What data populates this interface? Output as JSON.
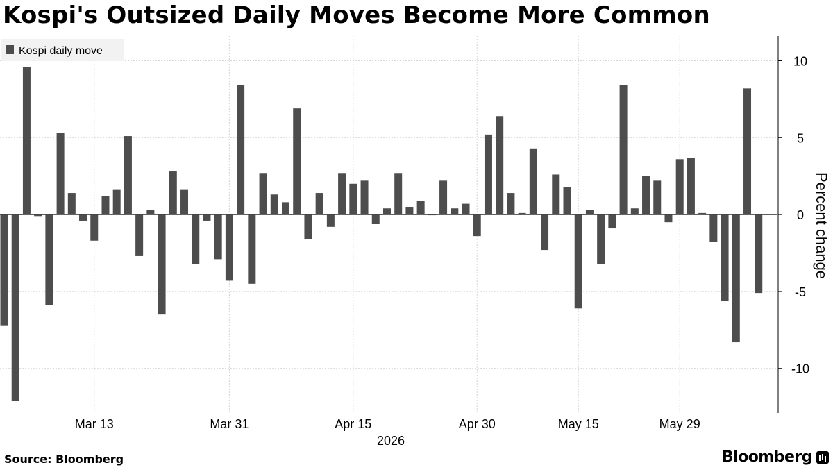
{
  "title": "Kospi's Outsized Daily Moves Become More Common",
  "source": "Source: Bloomberg",
  "brand": "Bloomberg",
  "colors": {
    "bar": "#4d4d4d",
    "grid": "#d4d4d4",
    "axis": "#000000",
    "legend_bg": "#f2f2f2"
  },
  "chart_data": {
    "type": "bar",
    "series": [
      {
        "name": "Kospi daily move",
        "values": [
          -7.2,
          -12.1,
          9.6,
          -0.1,
          -5.9,
          5.3,
          1.4,
          -0.4,
          -1.7,
          1.2,
          1.6,
          5.1,
          -2.7,
          0.3,
          -6.5,
          2.8,
          1.6,
          -3.2,
          -0.4,
          -2.9,
          -4.3,
          8.4,
          -4.5,
          2.7,
          1.3,
          0.8,
          6.9,
          -1.6,
          1.4,
          -0.8,
          2.7,
          2.0,
          2.2,
          -0.6,
          0.4,
          2.7,
          0.5,
          0.9,
          0.0,
          2.2,
          0.4,
          0.7,
          -1.4,
          5.2,
          6.4,
          1.4,
          0.1,
          4.3,
          -2.3,
          2.6,
          1.8,
          -6.1,
          0.3,
          -3.2,
          -0.9,
          8.4,
          0.4,
          2.5,
          2.2,
          -0.5,
          3.6,
          3.7,
          0.1,
          -1.8,
          -5.6,
          -8.3,
          8.2,
          -5.1
        ]
      }
    ],
    "x_ticks": [
      "Mar 13",
      "Mar 31",
      "Apr 15",
      "Apr 30",
      "May 15",
      "May 29"
    ],
    "x_tick_indices": [
      8,
      20,
      31,
      42,
      51,
      60
    ],
    "x_label": "2026",
    "y_label": "Percent change",
    "y_ticks": [
      10,
      5,
      0,
      -5,
      -10
    ],
    "ylim": [
      -12.9,
      11.6
    ],
    "grid": true,
    "legend_position": "top-left"
  }
}
